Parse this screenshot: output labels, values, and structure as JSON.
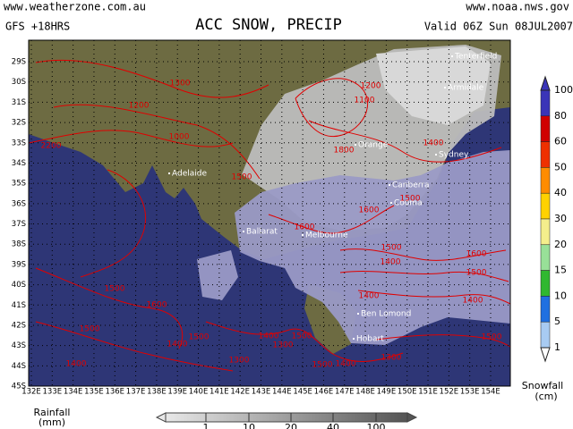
{
  "header": {
    "site_left": "www.weatherzone.com.au",
    "site_right": "www.noaa.nws.gov",
    "model": "GFS +18HRS",
    "title": "ACC SNOW, PRECIP",
    "valid": "Valid 06Z Sun 08JUL2007"
  },
  "lat_labels": [
    "29S",
    "30S",
    "31S",
    "32S",
    "33S",
    "34S",
    "35S",
    "36S",
    "37S",
    "38S",
    "39S",
    "40S",
    "41S",
    "42S",
    "43S",
    "44S",
    "45S"
  ],
  "lon_labels": [
    "132E",
    "133E",
    "134E",
    "135E",
    "136E",
    "137E",
    "138E",
    "139E",
    "140E",
    "141E",
    "142E",
    "143E",
    "144E",
    "145E",
    "146E",
    "147E",
    "148E",
    "149E",
    "150E",
    "151E",
    "152E",
    "153E",
    "154E"
  ],
  "cities": [
    "Tenterfield",
    "Armidale",
    "Orange",
    "Sydney",
    "Adelaide",
    "Canberra",
    "Cooma",
    "Ballarat",
    "Melbourne",
    "Ben Lomond",
    "Hobart"
  ],
  "contour_labels": [
    1500,
    1600,
    1500,
    1400,
    1400,
    1500,
    1300,
    1400,
    1300,
    1500,
    1500,
    1400,
    1300,
    1400,
    1400,
    1500,
    1600,
    1500,
    1400,
    1500,
    1600,
    1600,
    1400,
    1800,
    1200,
    1100,
    1500,
    1300,
    1200,
    1000,
    2200,
    1500
  ],
  "snowfall_legend": {
    "title": "Snowfall",
    "unit": "(cm)",
    "levels": [
      100,
      80,
      60,
      50,
      40,
      30,
      20,
      15,
      10,
      5,
      1
    ],
    "colors": [
      "#3a34b8",
      "#d00000",
      "#ee3000",
      "#ff8c00",
      "#ffd200",
      "#f4ee8c",
      "#98e098",
      "#30b830",
      "#2070e0",
      "#a8cbf2"
    ]
  },
  "rainfall_legend": {
    "title": "Rainfall",
    "unit": "(mm)",
    "levels": [
      1,
      10,
      20,
      40,
      100
    ]
  }
}
